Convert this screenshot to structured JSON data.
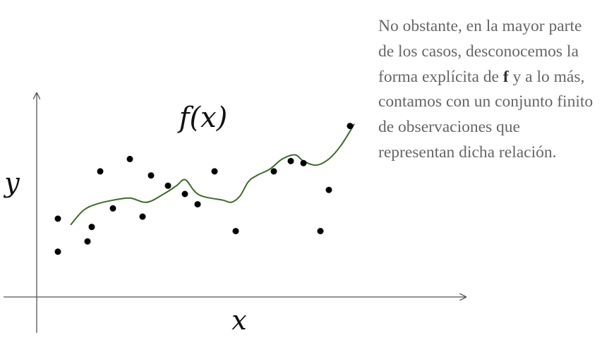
{
  "chart_data": {
    "type": "scatter",
    "title": "f(x)",
    "xlabel": "x",
    "ylabel": "y",
    "xlim": [
      0,
      100
    ],
    "ylim": [
      0,
      100
    ],
    "grid": false,
    "points": [
      {
        "x": 5,
        "y": 22
      },
      {
        "x": 5,
        "y": 38
      },
      {
        "x": 12,
        "y": 27
      },
      {
        "x": 13,
        "y": 34
      },
      {
        "x": 15,
        "y": 61
      },
      {
        "x": 18,
        "y": 43
      },
      {
        "x": 22,
        "y": 67
      },
      {
        "x": 25,
        "y": 39
      },
      {
        "x": 27,
        "y": 59
      },
      {
        "x": 31,
        "y": 54
      },
      {
        "x": 35,
        "y": 50
      },
      {
        "x": 38,
        "y": 45
      },
      {
        "x": 42,
        "y": 61
      },
      {
        "x": 47,
        "y": 32
      },
      {
        "x": 56,
        "y": 61
      },
      {
        "x": 60,
        "y": 66
      },
      {
        "x": 63,
        "y": 65
      },
      {
        "x": 67,
        "y": 32
      },
      {
        "x": 69,
        "y": 52
      },
      {
        "x": 74,
        "y": 83
      }
    ],
    "curve": {
      "name": "f(x)",
      "color": "#3d6b2a",
      "x": [
        8,
        11,
        14,
        18,
        22,
        26,
        30,
        33,
        35,
        37,
        38,
        39,
        41,
        44,
        46,
        48,
        50,
        52,
        55,
        58,
        61,
        63,
        66,
        69,
        72,
        75
      ],
      "y": [
        35,
        42,
        45,
        47,
        48,
        46,
        50,
        54,
        57,
        52,
        50,
        49,
        48,
        47,
        46,
        49,
        56,
        59,
        62,
        67,
        69,
        66,
        64,
        67,
        74,
        84
      ]
    }
  },
  "caption": {
    "part1": "No obstante, en la mayor parte de los casos, desconocemos la forma explícita de ",
    "bold": "f",
    "part2": " y a lo más, contamos con un conjunto finito de observaciones que representan dicha relación."
  }
}
